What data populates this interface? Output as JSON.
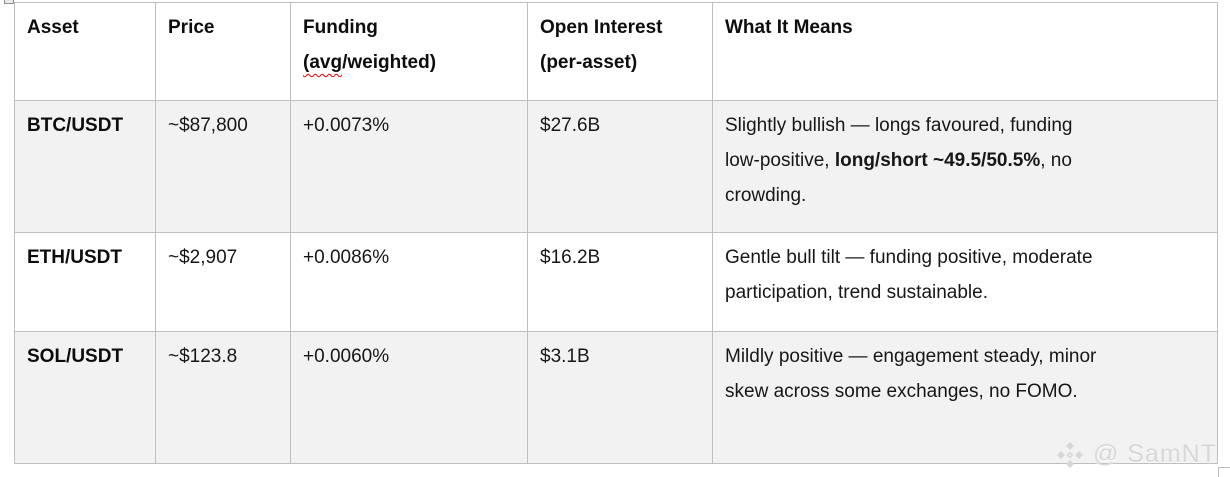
{
  "colors": {
    "row_shade": "#f2f2f2",
    "table_border": "#bfbfbf",
    "spellcheck_squiggly": "#e00000",
    "watermark_gray": "#d7d7d7",
    "text_black": "#171717"
  },
  "table": {
    "header": {
      "asset": "Asset",
      "price": "Price",
      "funding_lines": [
        [
          {
            "t": "Funding"
          }
        ],
        [
          {
            "t": "(avg",
            "sq": true
          },
          {
            "t": "/weighted)"
          }
        ]
      ],
      "open_interest_lines": [
        [
          {
            "t": "Open Interest"
          }
        ],
        [
          {
            "t": "(per-asset)"
          }
        ]
      ],
      "what_it_means": "What It Means"
    },
    "rows": [
      {
        "asset": "BTC/USDT",
        "price": "~$87,800",
        "funding": "+0.0073%",
        "open_interest": "$27.6B",
        "meaning_lines": [
          [
            {
              "t": "Slightly bullish — longs favoured, funding"
            }
          ],
          [
            {
              "t": "low-positive, "
            },
            {
              "t": "long/short ~49.5/50.5%",
              "b": true
            },
            {
              "t": ", no"
            }
          ],
          [
            {
              "t": "crowding."
            }
          ]
        ]
      },
      {
        "asset": "ETH/USDT",
        "price": "~$2,907",
        "funding": "+0.0086%",
        "open_interest": "$16.2B",
        "meaning_lines": [
          [
            {
              "t": "Gentle bull tilt — funding positive, moderate"
            }
          ],
          [
            {
              "t": "participation, trend sustainable."
            }
          ]
        ]
      },
      {
        "asset": "SOL/USDT",
        "price": "~$123.8",
        "funding": "+0.0060%",
        "open_interest": "$3.1B",
        "meaning_lines": [
          [
            {
              "t": "Mildly positive — engagement steady, minor"
            }
          ],
          [
            {
              "t": "skew across some exchanges, no FOMO."
            }
          ]
        ]
      }
    ]
  },
  "watermark": {
    "icon": "binance-diamond-logo-icon",
    "handle": "@ SamNT"
  }
}
